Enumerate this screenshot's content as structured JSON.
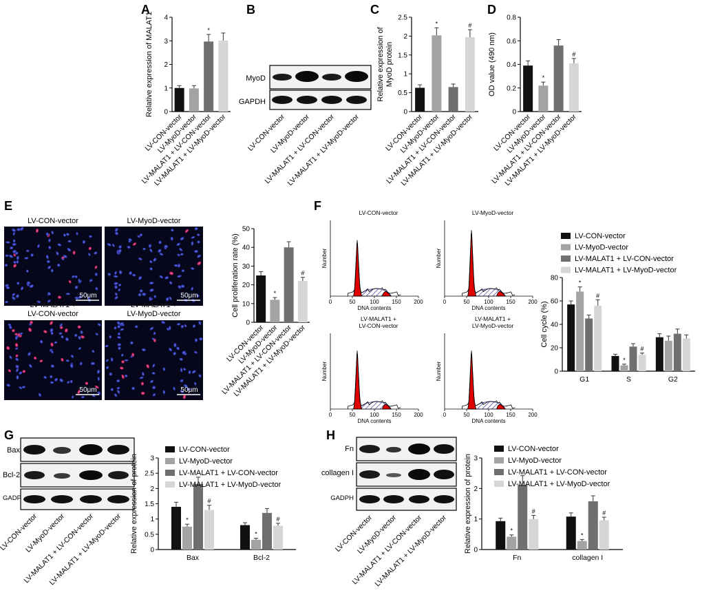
{
  "panels": {
    "A": "A",
    "B": "B",
    "C": "C",
    "D": "D",
    "E": "E",
    "F": "F",
    "G": "G",
    "H": "H"
  },
  "groups": [
    "LV-CON-vector",
    "LV-MyoD-vector",
    "LV-MALAT1 + LV-CON-vector",
    "LV-MALAT1 + LV-MyoD-vector"
  ],
  "colors": [
    "#111111",
    "#a3a3a3",
    "#6f6f6f",
    "#d6d6d6"
  ],
  "micro_titles": [
    "LV-CON-vector",
    "LV-MyoD-vector",
    "LV-MALAT1 +\nLV-CON-vector",
    "LV-MALAT1 +\nLV-MyoD-vector"
  ],
  "scale_bar": "50μm",
  "flow": {
    "titles": [
      "LV-CON-vector",
      "LV-MyoD-vector",
      "LV-MALAT1 +\nLV-CON-vector",
      "LV-MALAT1 +\nLV-MyoD-vector"
    ],
    "ylabel": "Number",
    "xlabel": "DNA contents",
    "xticks": [
      0,
      50,
      100,
      150,
      200
    ]
  },
  "blots": {
    "B": [
      "MyoD",
      "GAPDH"
    ],
    "G": [
      "Bax",
      "Bcl-2",
      "GADPH"
    ],
    "H": [
      "Fn",
      "collagen I",
      "GADPH"
    ]
  },
  "chart_data": [
    {
      "id": "A",
      "type": "bar",
      "ylabel": "Relative expression of MALAT1",
      "ylim": [
        0,
        4
      ],
      "yticks": [
        0,
        1,
        2,
        3,
        4
      ],
      "categories": [
        "LV-CON-vector",
        "LV-MyoD-vector",
        "LV-MALAT1 + LV-CON-vector",
        "LV-MALAT1 + LV-MyoD-vector"
      ],
      "values": [
        1.0,
        0.98,
        2.97,
        3.01
      ],
      "errors": [
        0.1,
        0.12,
        0.3,
        0.32
      ],
      "sig": [
        "",
        "",
        "*",
        ""
      ]
    },
    {
      "id": "C",
      "type": "bar",
      "ylabel": "Relative expression of\nMyoD protein",
      "ylim": [
        0,
        2.5
      ],
      "yticks": [
        0,
        0.5,
        1.0,
        1.5,
        2.0,
        2.5
      ],
      "categories": [
        "LV-CON-vector",
        "LV-MyoD-vector",
        "LV-MALAT1 + LV-CON-vector",
        "LV-MALAT1 + LV-MyoD-vector"
      ],
      "values": [
        0.63,
        2.02,
        0.65,
        1.97
      ],
      "errors": [
        0.08,
        0.2,
        0.08,
        0.2
      ],
      "sig": [
        "",
        "*",
        "",
        "#"
      ]
    },
    {
      "id": "D",
      "type": "bar",
      "ylabel": "OD value (490 nm)",
      "ylim": [
        0,
        0.8
      ],
      "yticks": [
        0,
        0.2,
        0.4,
        0.6,
        0.8
      ],
      "categories": [
        "LV-CON-vector",
        "LV-MyoD-vector",
        "LV-MALAT1 + LV-CON-vector",
        "LV-MALAT1 + LV-MyoD-vector"
      ],
      "values": [
        0.39,
        0.22,
        0.56,
        0.41
      ],
      "errors": [
        0.04,
        0.03,
        0.05,
        0.04
      ],
      "sig": [
        "",
        "*",
        "",
        "#"
      ]
    },
    {
      "id": "E",
      "type": "bar",
      "ylabel": "Cell proliferation rate (%)",
      "ylim": [
        0,
        50
      ],
      "yticks": [
        0,
        10,
        20,
        30,
        40,
        50
      ],
      "categories": [
        "LV-CON-vector",
        "LV-MyoD-vector",
        "LV-MALAT1 + LV-CON-vector",
        "LV-MALAT1 + LV-MyoD-vector"
      ],
      "values": [
        25,
        12,
        40,
        22
      ],
      "errors": [
        2,
        1.2,
        3,
        2
      ],
      "sig": [
        "",
        "*",
        "",
        "#"
      ]
    },
    {
      "id": "F",
      "type": "bar",
      "ylabel": "Cell cycle (%)",
      "ylim": [
        0,
        80
      ],
      "yticks": [
        0,
        20,
        40,
        60,
        80
      ],
      "categories": [
        "G1",
        "S",
        "G2"
      ],
      "series": [
        {
          "name": "LV-CON-vector",
          "values": [
            57,
            13,
            29
          ],
          "errors": [
            3,
            1.5,
            3
          ]
        },
        {
          "name": "LV-MyoD-vector",
          "values": [
            68,
            5,
            26
          ],
          "errors": [
            4,
            1,
            4
          ]
        },
        {
          "name": "LV-MALAT1 + LV-CON-vector",
          "values": [
            45,
            21,
            32
          ],
          "errors": [
            3,
            2.5,
            4
          ]
        },
        {
          "name": "LV-MALAT1 + LV-MyoD-vector",
          "values": [
            56,
            14,
            28
          ],
          "errors": [
            5,
            1.5,
            3
          ]
        }
      ],
      "sig": [
        [
          "",
          "*",
          "",
          "#"
        ],
        [
          "",
          "*",
          "",
          "#"
        ],
        [
          "",
          "",
          "",
          ""
        ]
      ]
    },
    {
      "id": "G",
      "type": "bar",
      "ylabel": "Relative expression of protein",
      "ylim": [
        0,
        3
      ],
      "yticks": [
        0,
        0.5,
        1.0,
        1.5,
        2.0,
        2.5,
        3.0
      ],
      "categories": [
        "Bax",
        "Bcl-2"
      ],
      "series": [
        {
          "name": "LV-CON-vector",
          "values": [
            1.4,
            0.8
          ],
          "errors": [
            0.15,
            0.08
          ]
        },
        {
          "name": "LV-MyoD-vector",
          "values": [
            0.75,
            0.32
          ],
          "errors": [
            0.08,
            0.05
          ]
        },
        {
          "name": "LV-MALAT1 + LV-CON-vector",
          "values": [
            2.15,
            1.2
          ],
          "errors": [
            0.22,
            0.14
          ]
        },
        {
          "name": "LV-MALAT1 + LV-MyoD-vector",
          "values": [
            1.3,
            0.78
          ],
          "errors": [
            0.15,
            0.08
          ]
        }
      ],
      "sig": [
        [
          "",
          "*",
          "",
          "#"
        ],
        [
          "",
          "*",
          "",
          "#"
        ]
      ]
    },
    {
      "id": "H",
      "type": "bar",
      "ylabel": "Relative expression of protein",
      "ylim": [
        0,
        3
      ],
      "yticks": [
        0,
        1,
        2,
        3
      ],
      "categories": [
        "Fn",
        "collagen I"
      ],
      "series": [
        {
          "name": "LV-CON-vector",
          "values": [
            0.93,
            1.08
          ],
          "errors": [
            0.1,
            0.12
          ]
        },
        {
          "name": "LV-MyoD-vector",
          "values": [
            0.42,
            0.28
          ],
          "errors": [
            0.06,
            0.05
          ]
        },
        {
          "name": "LV-MALAT1 + LV-CON-vector",
          "values": [
            2.12,
            1.58
          ],
          "errors": [
            0.3,
            0.18
          ]
        },
        {
          "name": "LV-MALAT1 + LV-MyoD-vector",
          "values": [
            1.0,
            0.96
          ],
          "errors": [
            0.12,
            0.1
          ]
        }
      ],
      "sig": [
        [
          "",
          "*",
          "",
          "#"
        ],
        [
          "",
          "*",
          "",
          "#"
        ]
      ]
    }
  ]
}
